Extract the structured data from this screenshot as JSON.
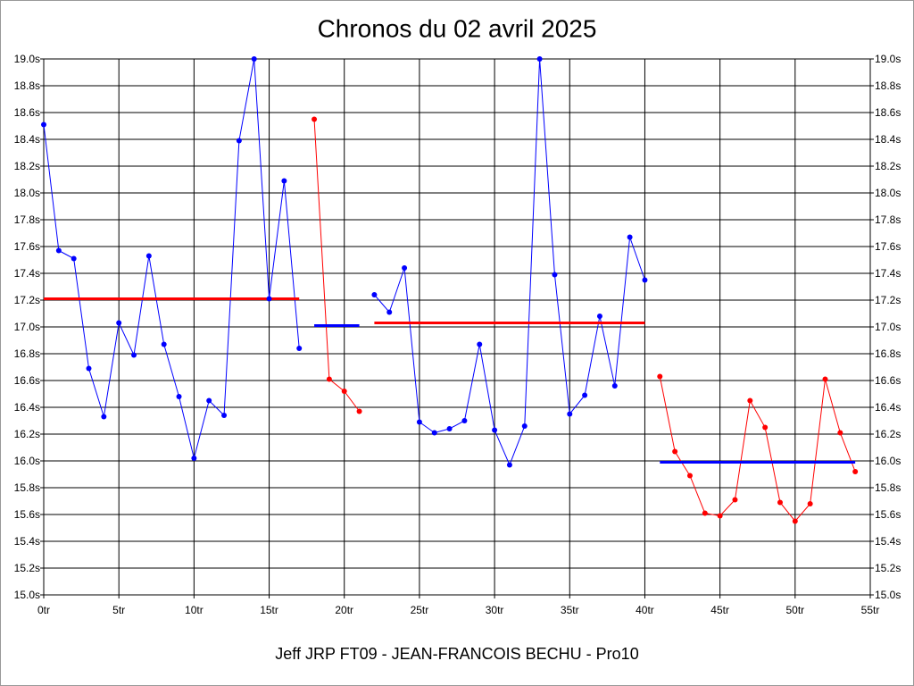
{
  "chart_data": {
    "type": "line",
    "title": "Chronos du 02 avril 2025",
    "x_label": "Jeff JRP FT09 - JEAN-FRANCOIS BECHU - Pro10",
    "grid": true,
    "xlim": [
      0,
      55
    ],
    "xticks": [
      {
        "value": 0,
        "label": "0tr"
      },
      {
        "value": 5,
        "label": "5tr"
      },
      {
        "value": 10,
        "label": "10tr"
      },
      {
        "value": 15,
        "label": "15tr"
      },
      {
        "value": 20,
        "label": "20tr"
      },
      {
        "value": 25,
        "label": "25tr"
      },
      {
        "value": 30,
        "label": "30tr"
      },
      {
        "value": 35,
        "label": "35tr"
      },
      {
        "value": 40,
        "label": "40tr"
      },
      {
        "value": 45,
        "label": "45tr"
      },
      {
        "value": 50,
        "label": "50tr"
      },
      {
        "value": 55,
        "label": "55tr"
      }
    ],
    "ylim": [
      15.0,
      19.0
    ],
    "yticks": [
      {
        "value": 15.0,
        "label": "15.0s"
      },
      {
        "value": 15.2,
        "label": "15.2s"
      },
      {
        "value": 15.4,
        "label": "15.4s"
      },
      {
        "value": 15.6,
        "label": "15.6s"
      },
      {
        "value": 15.8,
        "label": "15.8s"
      },
      {
        "value": 16.0,
        "label": "16.0s"
      },
      {
        "value": 16.2,
        "label": "16.2s"
      },
      {
        "value": 16.4,
        "label": "16.4s"
      },
      {
        "value": 16.6,
        "label": "16.6s"
      },
      {
        "value": 16.8,
        "label": "16.8s"
      },
      {
        "value": 17.0,
        "label": "17.0s"
      },
      {
        "value": 17.2,
        "label": "17.2s"
      },
      {
        "value": 17.4,
        "label": "17.4s"
      },
      {
        "value": 17.6,
        "label": "17.6s"
      },
      {
        "value": 17.8,
        "label": "17.8s"
      },
      {
        "value": 18.0,
        "label": "18.0s"
      },
      {
        "value": 18.2,
        "label": "18.2s"
      },
      {
        "value": 18.4,
        "label": "18.4s"
      },
      {
        "value": 18.6,
        "label": "18.6s"
      },
      {
        "value": 18.8,
        "label": "18.8s"
      },
      {
        "value": 19.0,
        "label": "19.0s"
      }
    ],
    "series": [
      {
        "color": "#0000ff",
        "mean_color": "#ff0000",
        "mean": 17.21,
        "x": [
          0,
          1,
          2,
          3,
          4,
          5,
          6,
          7,
          8,
          9,
          10,
          11,
          12,
          13,
          14,
          15,
          16,
          17
        ],
        "values": [
          18.51,
          17.57,
          17.51,
          16.69,
          16.33,
          17.03,
          16.79,
          17.53,
          16.87,
          16.48,
          16.02,
          16.45,
          16.34,
          18.39,
          19.0,
          17.21,
          18.09,
          16.84
        ]
      },
      {
        "color": "#ff0000",
        "mean_color": "#0000ff",
        "mean": 17.01,
        "x": [
          18,
          19,
          20,
          21
        ],
        "values": [
          18.55,
          16.61,
          16.52,
          16.37
        ]
      },
      {
        "color": "#0000ff",
        "mean_color": "#ff0000",
        "mean": 17.03,
        "x": [
          22,
          23,
          24,
          25,
          26,
          27,
          28,
          29,
          30,
          31,
          32,
          33,
          34,
          35,
          36,
          37,
          38,
          39,
          40
        ],
        "values": [
          17.24,
          17.11,
          17.44,
          16.29,
          16.21,
          16.24,
          16.3,
          16.87,
          16.23,
          15.97,
          16.26,
          19.0,
          17.39,
          16.35,
          16.49,
          17.08,
          16.56,
          17.67,
          17.35
        ]
      },
      {
        "color": "#ff0000",
        "mean_color": "#0000ff",
        "mean": 15.99,
        "x": [
          41,
          42,
          43,
          44,
          45,
          46,
          47,
          48,
          49,
          50,
          51,
          52,
          53,
          54
        ],
        "values": [
          16.63,
          16.07,
          15.89,
          15.61,
          15.59,
          15.71,
          16.45,
          16.25,
          15.69,
          15.55,
          15.68,
          16.61,
          16.21,
          15.92
        ]
      }
    ]
  }
}
